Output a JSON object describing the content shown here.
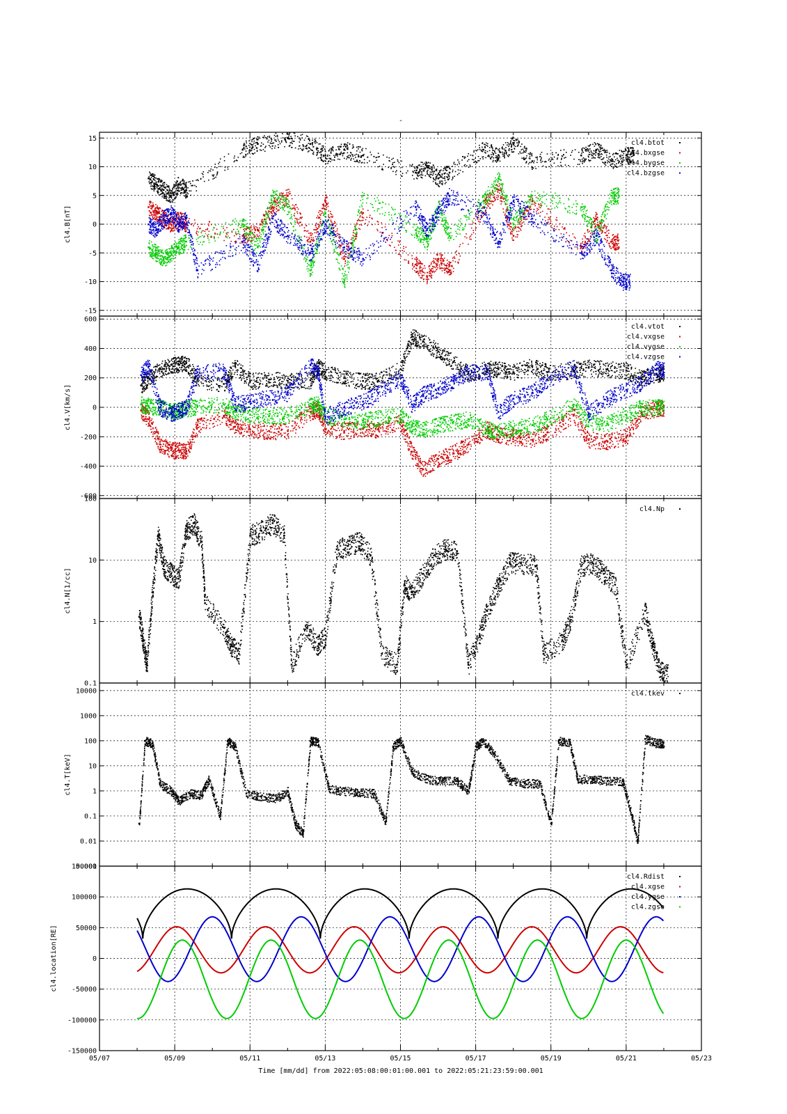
{
  "figure": {
    "title": "-",
    "xlabel": "Time [mm/dd]  from 2022:05:08:00:01:00.001  to  2022:05:21:23:59:00.001"
  },
  "chart_data": [
    {
      "type": "scatter",
      "panel": "B",
      "ylabel": "cl4.B[nT]",
      "ylim": [
        -16,
        16
      ],
      "yticks": [
        -15,
        -10,
        -5,
        0,
        5,
        10,
        15
      ],
      "ytick_labels": [
        "-15",
        "-10",
        "-5",
        "0",
        "5",
        "10",
        "15"
      ],
      "legend_position": "top-right",
      "series": [
        {
          "name": "cl4.btot",
          "color": "#000000",
          "x": [
            8.3,
            8.5,
            8.7,
            8.9,
            9.1,
            9.3,
            10.8,
            11.2,
            12.0,
            12.6,
            13.0,
            13.5,
            14.0,
            15.4,
            15.7,
            16.0,
            16.3,
            17.2,
            17.6,
            18.0,
            18.5,
            19.8,
            20.2,
            20.6,
            21.0
          ],
          "y": [
            8,
            7,
            6,
            5,
            7,
            6,
            13,
            14,
            15,
            14,
            12,
            13,
            12,
            9,
            10,
            8,
            9,
            13,
            12,
            14,
            11,
            12,
            13,
            11,
            12
          ]
        },
        {
          "name": "cl4.bxgse",
          "color": "#cc0000",
          "x": [
            8.3,
            8.5,
            8.7,
            8.9,
            9.1,
            9.3,
            10.8,
            11.2,
            11.6,
            12.0,
            12.6,
            13.0,
            13.5,
            14.0,
            15.4,
            15.7,
            16.0,
            16.3,
            17.2,
            17.6,
            18.0,
            18.5,
            19.8,
            20.2,
            20.6
          ],
          "y": [
            3,
            2,
            1,
            0,
            1,
            0,
            -2,
            -1,
            3,
            5,
            -3,
            4,
            -6,
            2,
            -7,
            -9,
            -6,
            -8,
            3,
            6,
            -2,
            4,
            -4,
            1,
            -3
          ]
        },
        {
          "name": "cl4.bygse",
          "color": "#00cc00",
          "x": [
            8.3,
            8.5,
            8.7,
            8.9,
            9.1,
            9.3,
            10.8,
            11.2,
            11.6,
            12.0,
            12.6,
            13.0,
            13.5,
            14.0,
            15.4,
            15.7,
            16.0,
            16.3,
            17.2,
            17.6,
            18.0,
            18.5,
            19.8,
            20.2,
            20.6
          ],
          "y": [
            -4,
            -5,
            -6,
            -5,
            -4,
            -3,
            0,
            -4,
            5,
            3,
            -8,
            2,
            -10,
            5,
            -1,
            -3,
            3,
            -2,
            4,
            8,
            0,
            5,
            3,
            -2,
            5
          ]
        },
        {
          "name": "cl4.bzgse",
          "color": "#0000cc",
          "x": [
            8.3,
            8.5,
            8.7,
            8.9,
            9.1,
            9.3,
            9.6,
            10.8,
            11.2,
            11.6,
            12.0,
            12.6,
            13.0,
            13.5,
            14.0,
            15.4,
            15.7,
            16.0,
            16.3,
            17.2,
            17.6,
            18.0,
            18.5,
            19.8,
            20.2,
            20.6,
            20.9
          ],
          "y": [
            0,
            -1,
            1,
            2,
            0,
            1,
            -8,
            -3,
            -7,
            1,
            -2,
            -5,
            0,
            -4,
            -6,
            3,
            -1,
            2,
            5,
            2,
            -3,
            4,
            1,
            -5,
            -2,
            -8,
            -10
          ]
        }
      ]
    },
    {
      "type": "scatter",
      "panel": "V",
      "ylabel": "cl4.V[km/s]",
      "ylim": [
        -620,
        620
      ],
      "yticks": [
        -600,
        -400,
        -200,
        0,
        200,
        400,
        600
      ],
      "ytick_labels": [
        "-600",
        "-400",
        "-200",
        "0",
        "200",
        "400",
        "600"
      ],
      "legend_position": "top-right",
      "series": [
        {
          "name": "cl4.vtot",
          "color": "#000000",
          "x": [
            8.1,
            8.3,
            8.6,
            8.9,
            9.1,
            9.3,
            9.6,
            10.3,
            10.6,
            11.0,
            11.5,
            12.0,
            12.6,
            12.8,
            13.0,
            13.5,
            14.0,
            14.4,
            15.0,
            15.3,
            15.6,
            16.0,
            16.4,
            16.8,
            17.3,
            17.6,
            18.0,
            18.5,
            18.9,
            19.6,
            20.0,
            20.5,
            21.0,
            21.4,
            21.8
          ],
          "y": [
            150,
            200,
            260,
            290,
            290,
            300,
            190,
            160,
            280,
            180,
            190,
            180,
            185,
            280,
            240,
            200,
            180,
            180,
            260,
            480,
            450,
            380,
            310,
            230,
            260,
            260,
            240,
            280,
            240,
            250,
            270,
            260,
            250,
            200,
            230
          ]
        },
        {
          "name": "cl4.vxgse",
          "color": "#cc0000",
          "x": [
            8.1,
            8.3,
            8.6,
            8.9,
            9.1,
            9.3,
            9.6,
            10.3,
            10.6,
            11.0,
            11.5,
            12.0,
            12.6,
            12.8,
            13.0,
            13.5,
            14.0,
            14.4,
            15.0,
            15.3,
            15.6,
            16.0,
            16.4,
            16.8,
            17.3,
            17.6,
            18.0,
            18.5,
            18.9,
            19.6,
            20.0,
            20.5,
            21.0,
            21.4,
            21.8
          ],
          "y": [
            -20,
            -80,
            -250,
            -290,
            -290,
            -300,
            -120,
            -60,
            -130,
            -150,
            -160,
            -160,
            -30,
            -10,
            -150,
            -160,
            -140,
            -150,
            -100,
            -300,
            -420,
            -350,
            -310,
            -250,
            -150,
            -190,
            -200,
            -220,
            -170,
            -50,
            -220,
            -230,
            -200,
            -30,
            -10
          ]
        },
        {
          "name": "cl4.vygse",
          "color": "#00cc00",
          "x": [
            8.1,
            8.3,
            8.6,
            8.9,
            9.1,
            9.3,
            9.6,
            10.3,
            10.6,
            11.0,
            11.5,
            12.0,
            12.6,
            12.8,
            13.0,
            13.5,
            14.0,
            14.4,
            15.0,
            15.3,
            15.6,
            16.0,
            16.4,
            16.8,
            17.3,
            17.6,
            18.0,
            18.5,
            18.9,
            19.6,
            20.0,
            20.5,
            21.0,
            21.4,
            21.8
          ],
          "y": [
            20,
            10,
            0,
            -30,
            -20,
            -10,
            10,
            20,
            -30,
            -50,
            -60,
            -50,
            10,
            20,
            -60,
            -80,
            -90,
            -70,
            -50,
            -130,
            -150,
            -120,
            -100,
            -80,
            -150,
            -160,
            -140,
            -120,
            -80,
            20,
            -100,
            -110,
            -50,
            0,
            0
          ]
        },
        {
          "name": "cl4.vzgse",
          "color": "#0000cc",
          "x": [
            8.1,
            8.3,
            8.6,
            8.9,
            9.1,
            9.3,
            9.6,
            10.3,
            10.6,
            11.0,
            11.5,
            12.0,
            12.6,
            12.8,
            13.0,
            13.5,
            14.0,
            14.4,
            15.0,
            15.3,
            15.6,
            16.0,
            16.4,
            16.8,
            17.3,
            17.6,
            18.0,
            18.5,
            18.9,
            19.6,
            20.0,
            20.5,
            21.0,
            21.4,
            21.8
          ],
          "y": [
            220,
            280,
            0,
            -40,
            -20,
            0,
            240,
            250,
            20,
            40,
            70,
            100,
            290,
            240,
            -60,
            0,
            40,
            100,
            200,
            20,
            90,
            130,
            180,
            240,
            240,
            -30,
            60,
            100,
            190,
            270,
            -40,
            60,
            120,
            170,
            260
          ]
        }
      ]
    },
    {
      "type": "scatter",
      "panel": "N",
      "ylabel": "cl4.N[1/cc]",
      "yscale": "log",
      "ylim": [
        0.1,
        100
      ],
      "yticks": [
        0.1,
        1,
        10,
        100
      ],
      "ytick_labels": [
        "0.1",
        "1",
        "10",
        "100"
      ],
      "legend_position": "top-right",
      "series": [
        {
          "name": "cl4.Np",
          "color": "#000000",
          "x": [
            8.05,
            8.15,
            8.25,
            8.4,
            8.55,
            8.7,
            8.9,
            9.1,
            9.3,
            9.5,
            9.7,
            9.8,
            10.3,
            10.5,
            10.7,
            11.0,
            11.3,
            11.6,
            11.9,
            12.1,
            12.5,
            12.8,
            13.0,
            13.3,
            13.6,
            13.9,
            14.2,
            14.5,
            14.9,
            15.1,
            15.3,
            15.6,
            15.9,
            16.2,
            16.5,
            16.8,
            17.1,
            17.3,
            17.6,
            17.9,
            18.2,
            18.6,
            18.8,
            19.3,
            19.5,
            19.8,
            20.1,
            20.4,
            20.7,
            21.0,
            21.5,
            21.7,
            21.9
          ],
          "y": [
            1.2,
            0.5,
            0.2,
            3,
            25,
            8,
            6,
            5,
            30,
            40,
            20,
            2,
            0.8,
            0.4,
            0.3,
            25,
            30,
            40,
            25,
            0.2,
            0.8,
            0.4,
            0.6,
            15,
            17,
            20,
            12,
            0.3,
            0.2,
            4,
            3,
            6,
            12,
            15,
            14,
            0.2,
            0.6,
            1.5,
            4,
            9,
            9,
            8,
            0.3,
            0.5,
            1,
            8,
            9,
            6,
            4,
            0.2,
            1.5,
            0.4,
            0.15
          ]
        }
      ]
    },
    {
      "type": "scatter",
      "panel": "T",
      "ylabel": "cl4.T[keV]",
      "yscale": "log",
      "ylim": [
        0.001,
        20000
      ],
      "yticks": [
        0.001,
        0.01,
        0.1,
        1,
        10,
        100,
        1000,
        10000
      ],
      "ytick_labels": [
        "0.001",
        "0.01",
        "0.1",
        "1",
        "10",
        "100",
        "1000",
        "10000"
      ],
      "legend_position": "top-right",
      "series": [
        {
          "name": "cl4.tkev",
          "color": "#000000",
          "x": [
            8.05,
            8.2,
            8.4,
            8.6,
            8.9,
            9.1,
            9.4,
            9.7,
            9.9,
            10.2,
            10.4,
            10.6,
            10.9,
            11.3,
            11.7,
            12.0,
            12.2,
            12.4,
            12.6,
            12.8,
            13.1,
            13.5,
            13.9,
            14.3,
            14.6,
            14.8,
            15.0,
            15.3,
            15.7,
            16.1,
            16.5,
            16.8,
            17.0,
            17.2,
            17.5,
            17.9,
            18.3,
            18.7,
            19.0,
            19.2,
            19.5,
            19.7,
            20.1,
            20.5,
            20.9,
            21.1,
            21.3,
            21.5,
            21.8
          ],
          "y": [
            0.05,
            100,
            80,
            2,
            1,
            0.4,
            0.8,
            0.7,
            3,
            0.1,
            100,
            60,
            0.8,
            0.6,
            0.5,
            1,
            0.05,
            0.02,
            100,
            90,
            1.2,
            1,
            0.9,
            0.8,
            0.06,
            60,
            100,
            6,
            3,
            2.5,
            2.5,
            1,
            60,
            100,
            30,
            2.5,
            2,
            2,
            0.05,
            100,
            80,
            3,
            3,
            2.5,
            2.5,
            0.2,
            0.01,
            120,
            80
          ]
        }
      ]
    },
    {
      "type": "line",
      "panel": "location",
      "ylabel": "cl4.location[RE]",
      "ylim": [
        -150000,
        150000
      ],
      "yticks": [
        -150000,
        -100000,
        -50000,
        0,
        50000,
        100000,
        150000
      ],
      "ytick_labels": [
        "-150000",
        "-100000",
        "-50000",
        "0",
        "50000",
        "100000",
        "150000"
      ],
      "legend_position": "top-right",
      "orbit_period_days": 2.36,
      "series": [
        {
          "name": "cl4.Rdist",
          "color": "#000000",
          "amplitude": 113000,
          "min": 32000,
          "phase_day": 8.15
        },
        {
          "name": "cl4.xgse",
          "color": "#cc0000",
          "amplitude": 52000,
          "offset": 14000,
          "phase_day": 9.05
        },
        {
          "name": "cl4.ygse",
          "color": "#0000cc",
          "amplitude": 73000,
          "offset": 15000,
          "phase_day": 10.0
        },
        {
          "name": "cl4.zgse",
          "color": "#00cc00",
          "amplitude": 98000,
          "offset": -34000,
          "phase_day": 9.2
        }
      ]
    }
  ],
  "xaxis": {
    "xlim": [
      7,
      23
    ],
    "ticks": [
      7,
      9,
      11,
      13,
      15,
      17,
      19,
      21,
      23
    ],
    "tick_labels": [
      "05/07",
      "05/09",
      "05/11",
      "05/13",
      "05/15",
      "05/17",
      "05/19",
      "05/21",
      "05/23"
    ],
    "data_start": 8.0,
    "data_end": 22.0
  }
}
